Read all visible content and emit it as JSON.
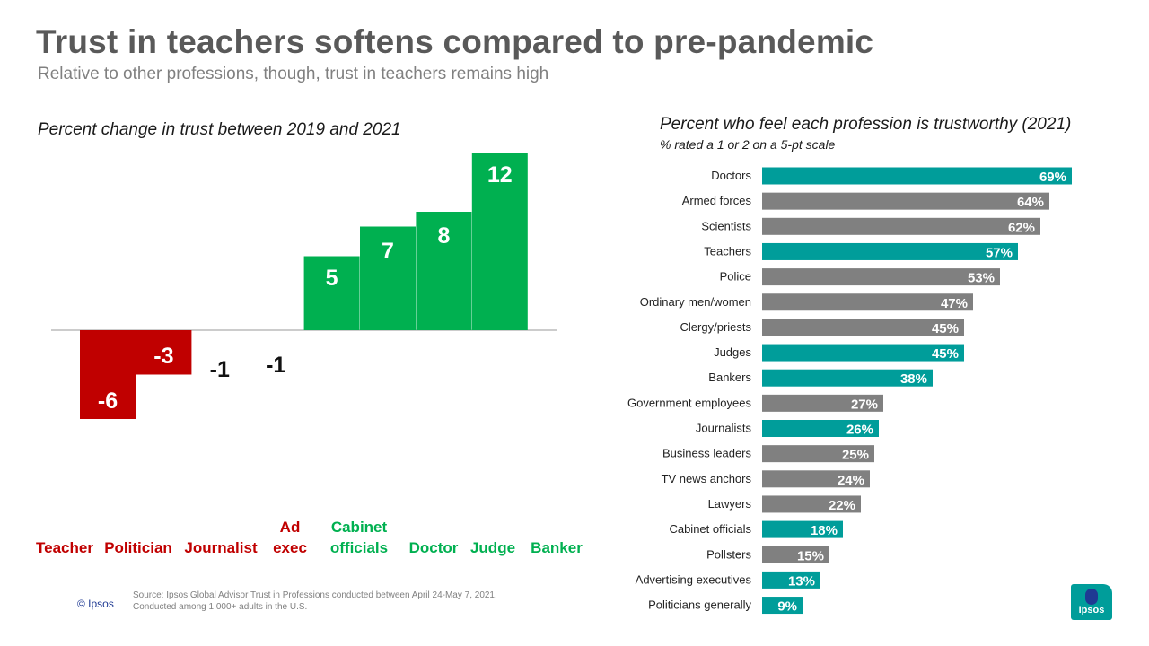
{
  "header": {
    "title": "Trust in teachers softens compared to pre-pandemic",
    "subtitle": "Relative to other professions, though, trust in teachers remains high"
  },
  "footer": {
    "copyright": "© Ipsos",
    "source_line1": "Source: Ipsos Global Advisor Trust in Professions conducted between April 24-May 7, 2021.",
    "source_line2": "Conducted among 1,000+ adults in the U.S.",
    "logo_text": "Ipsos"
  },
  "colors": {
    "negative": "#c00000",
    "positive": "#00b050",
    "neutral_label": "#111111",
    "bar_teal": "#009d9a",
    "bar_gray": "#808080"
  },
  "chart_data": [
    {
      "type": "bar",
      "title": "Percent change in trust between 2019 and 2021",
      "categories": [
        "Teacher",
        "Politician",
        "Journalist",
        "Ad exec",
        "Cabinet officials",
        "Doctor",
        "Judge",
        "Banker"
      ],
      "label_lines": [
        [
          "Teacher"
        ],
        [
          "Politician"
        ],
        [
          "Journalist"
        ],
        [
          "Ad",
          "exec"
        ],
        [
          "Cabinet",
          "officials"
        ],
        [
          "Doctor"
        ],
        [
          "Judge"
        ],
        [
          "Banker"
        ]
      ],
      "values": [
        -6,
        -3,
        -1,
        -1,
        5,
        7,
        8,
        12
      ],
      "value_labels": [
        "-6",
        "-3",
        "-1",
        "-1",
        "5",
        "7",
        "8",
        "12"
      ],
      "bar_drawn": [
        true,
        true,
        false,
        false,
        true,
        true,
        true,
        true
      ],
      "ylim": [
        -6,
        12
      ]
    },
    {
      "type": "bar",
      "orientation": "horizontal",
      "title": "Percent who feel each profession is trustworthy  (2021)",
      "subtitle": "% rated a 1 or 2 on a 5-pt scale",
      "categories": [
        "Doctors",
        "Armed forces",
        "Scientists",
        "Teachers",
        "Police",
        "Ordinary men/women",
        "Clergy/priests",
        "Judges",
        "Bankers",
        "Government employees",
        "Journalists",
        "Business leaders",
        "TV news anchors",
        "Lawyers",
        "Cabinet officials",
        "Pollsters",
        "Advertising executives",
        "Politicians generally"
      ],
      "values": [
        69,
        64,
        62,
        57,
        53,
        47,
        45,
        45,
        38,
        27,
        26,
        25,
        24,
        22,
        18,
        15,
        13,
        9
      ],
      "value_labels": [
        "69%",
        "64%",
        "62%",
        "57%",
        "53%",
        "47%",
        "45%",
        "45%",
        "38%",
        "27%",
        "26%",
        "25%",
        "24%",
        "22%",
        "18%",
        "15%",
        "13%",
        "9%"
      ],
      "highlighted": [
        true,
        false,
        false,
        true,
        false,
        false,
        false,
        true,
        true,
        false,
        true,
        false,
        false,
        false,
        true,
        false,
        true,
        true
      ],
      "xlim": [
        0,
        70
      ]
    }
  ]
}
